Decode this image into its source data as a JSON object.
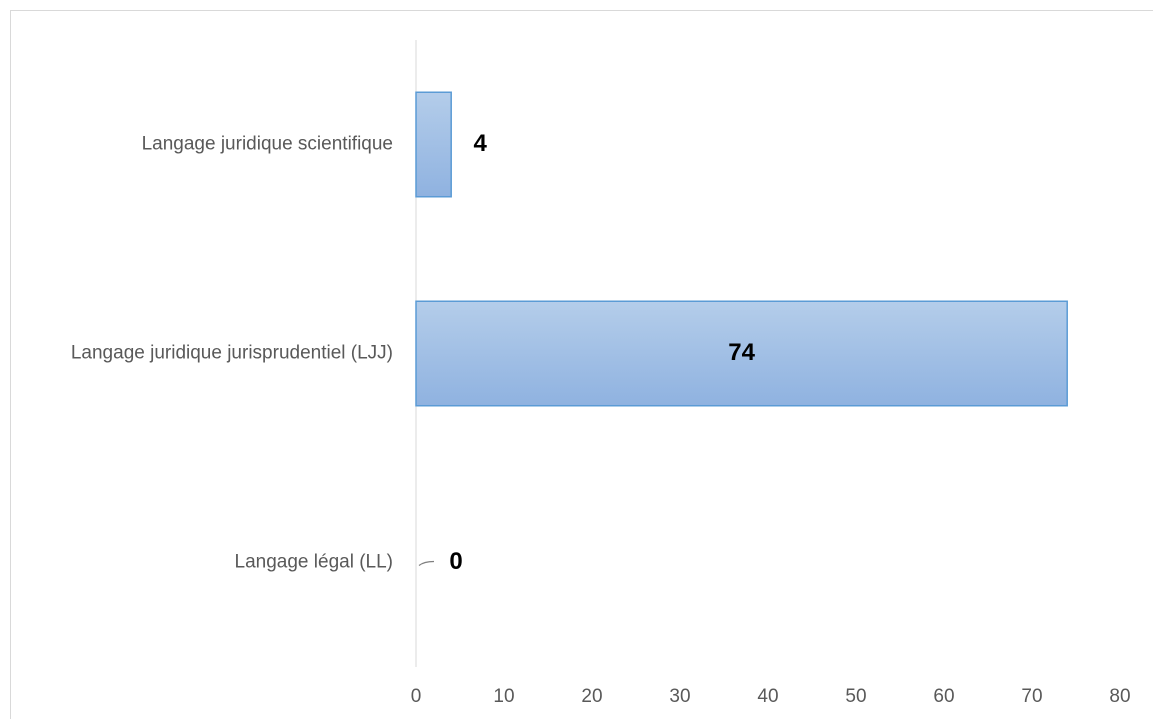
{
  "chart_data": {
    "type": "bar",
    "orientation": "horizontal",
    "categories": [
      "Langage juridique scientifique",
      "Langage juridique jurisprudentiel (LJJ)",
      "Langage légal (LL)"
    ],
    "values": [
      4,
      74,
      0
    ],
    "data_labels": [
      "4",
      "74",
      "0"
    ],
    "xticks": [
      0,
      10,
      20,
      30,
      40,
      50,
      60,
      70,
      80
    ],
    "xlim": [
      0,
      80
    ],
    "title": "",
    "xlabel": "",
    "ylabel": "",
    "grid": false,
    "legend": "none",
    "colors": {
      "bar_fill_light": "#b4cdea",
      "bar_fill_dark": "#8fb2e0",
      "bar_stroke": "#5b9bd5",
      "axis": "#d9d9d9",
      "category_text": "#595959",
      "data_label_text": "#000000"
    }
  }
}
